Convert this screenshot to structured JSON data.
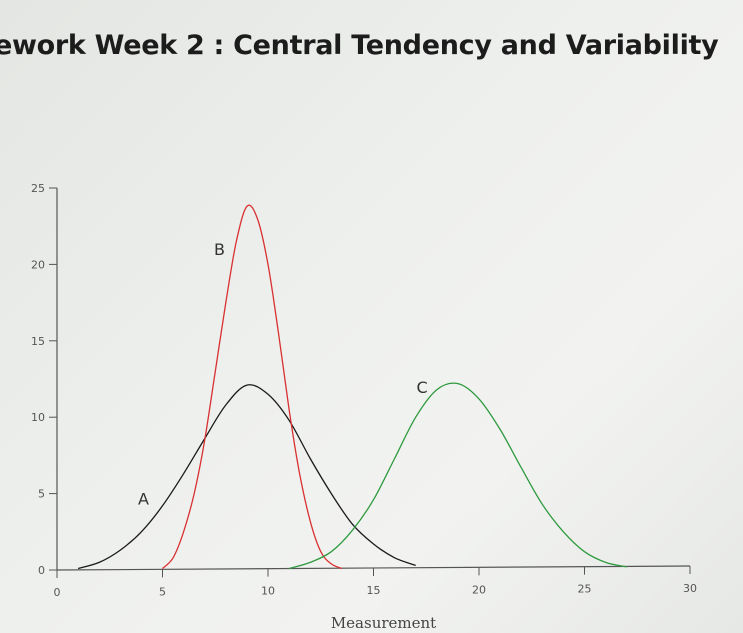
{
  "page_title": "ework Week 2 : Central Tendency and Variability",
  "chart_data": {
    "type": "line",
    "title": "",
    "xlabel": "Measurement",
    "ylabel": "",
    "xlim": [
      0,
      30
    ],
    "ylim": [
      0,
      25
    ],
    "x_ticks": [
      0,
      5,
      10,
      15,
      20,
      25,
      30
    ],
    "y_ticks": [
      0,
      5,
      10,
      15,
      20,
      25
    ],
    "grid": false,
    "series": [
      {
        "name": "A",
        "color": "#1a1a1a",
        "points": [
          [
            1,
            0.1
          ],
          [
            2,
            0.5
          ],
          [
            3,
            1.3
          ],
          [
            4,
            2.5
          ],
          [
            5,
            4.2
          ],
          [
            6,
            6.3
          ],
          [
            7,
            8.6
          ],
          [
            8,
            10.8
          ],
          [
            9,
            12.1
          ],
          [
            10,
            11.5
          ],
          [
            11,
            9.8
          ],
          [
            12,
            7.3
          ],
          [
            13,
            5
          ],
          [
            14,
            3
          ],
          [
            15,
            1.7
          ],
          [
            16,
            0.8
          ],
          [
            17,
            0.3
          ]
        ]
      },
      {
        "name": "B",
        "color": "#d93030",
        "points": [
          [
            5,
            0.1
          ],
          [
            5.5,
            0.8
          ],
          [
            6,
            2.5
          ],
          [
            6.5,
            5
          ],
          [
            7,
            8.5
          ],
          [
            7.5,
            13
          ],
          [
            8,
            17.5
          ],
          [
            8.5,
            21.5
          ],
          [
            9,
            23.8
          ],
          [
            9.5,
            23
          ],
          [
            10,
            20
          ],
          [
            10.5,
            15.5
          ],
          [
            11,
            10.5
          ],
          [
            11.5,
            6.3
          ],
          [
            12,
            3.2
          ],
          [
            12.5,
            1.2
          ],
          [
            13,
            0.4
          ],
          [
            13.5,
            0.1
          ]
        ]
      },
      {
        "name": "C",
        "color": "#2e9a3e",
        "points": [
          [
            11,
            0.1
          ],
          [
            12,
            0.5
          ],
          [
            13,
            1.2
          ],
          [
            14,
            2.6
          ],
          [
            15,
            4.6
          ],
          [
            16,
            7.3
          ],
          [
            17,
            10
          ],
          [
            18,
            11.8
          ],
          [
            19,
            12.2
          ],
          [
            20,
            11.2
          ],
          [
            21,
            9.2
          ],
          [
            22,
            6.7
          ],
          [
            23,
            4.3
          ],
          [
            24,
            2.5
          ],
          [
            25,
            1.2
          ],
          [
            26,
            0.5
          ],
          [
            27,
            0.2
          ]
        ]
      }
    ],
    "annotations": [
      {
        "text": "A",
        "x": 4.1,
        "y": 4.3
      },
      {
        "text": "B",
        "x": 7.7,
        "y": 20.6
      },
      {
        "text": "C",
        "x": 17.3,
        "y": 11.6
      }
    ]
  }
}
